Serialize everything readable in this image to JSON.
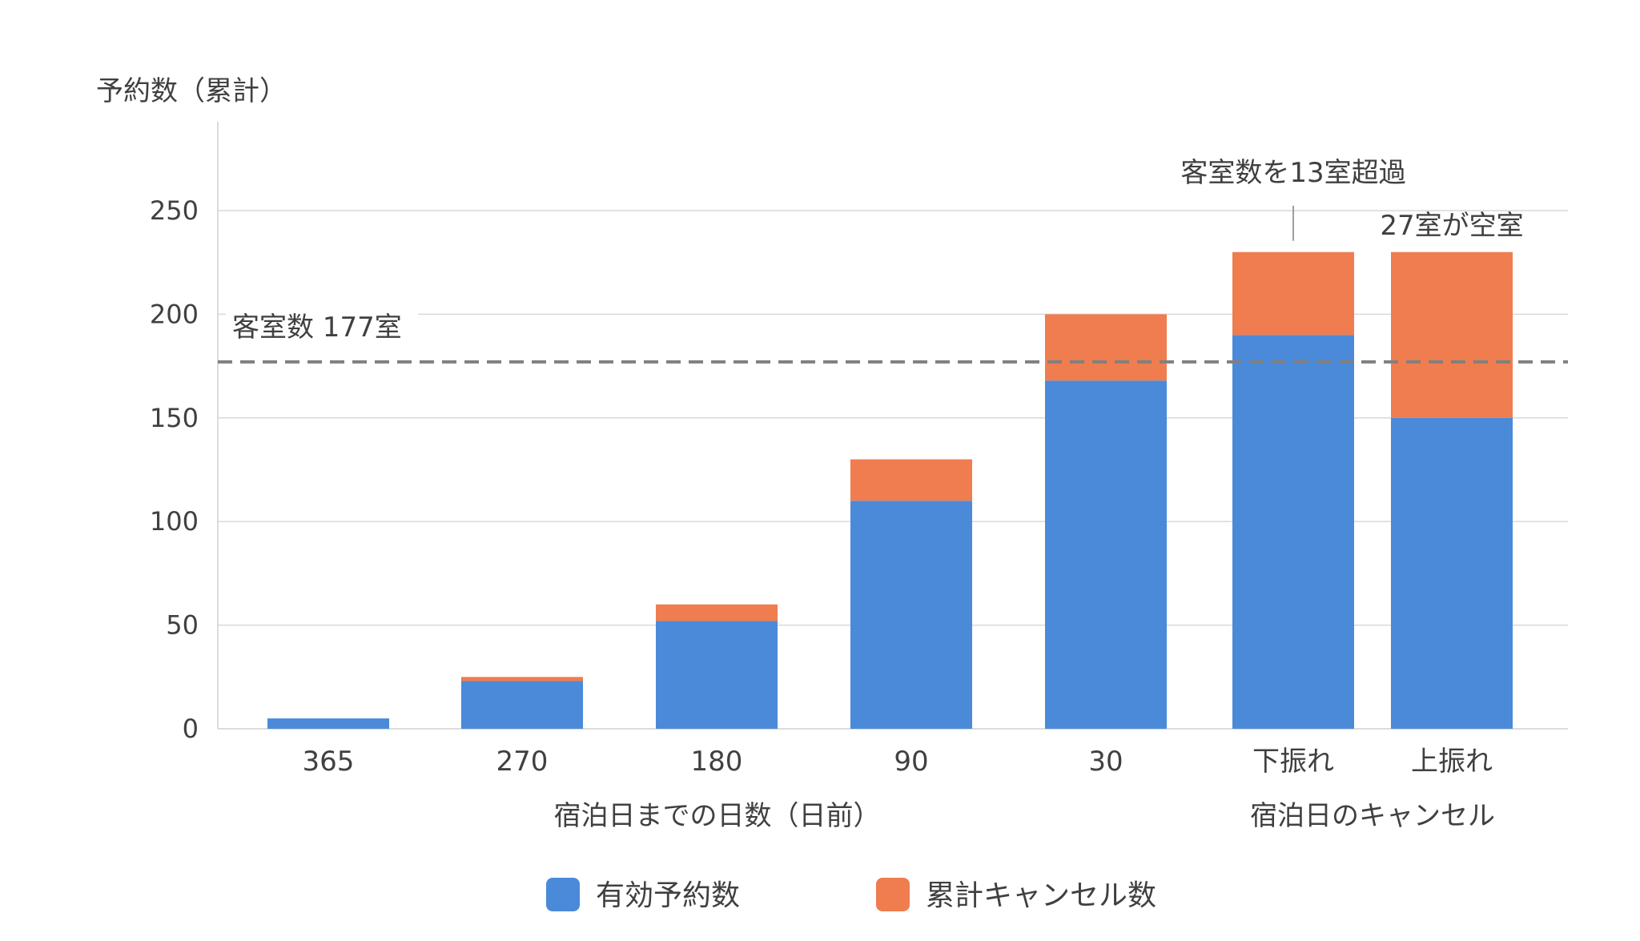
{
  "chart_data": {
    "type": "bar",
    "stacked": true,
    "ylabel": "予約数（累計）",
    "ylim": [
      0,
      290
    ],
    "yticks": [
      0,
      50,
      100,
      150,
      200,
      250
    ],
    "grid": true,
    "categories": [
      "365",
      "270",
      "180",
      "90",
      "30",
      "下振れ",
      "上振れ"
    ],
    "category_groups": [
      {
        "label": "宿泊日までの日数（日前）",
        "categories": [
          "365",
          "270",
          "180",
          "90",
          "30"
        ]
      },
      {
        "label": "宿泊日のキャンセル",
        "categories": [
          "下振れ",
          "上振れ"
        ]
      }
    ],
    "series": [
      {
        "name": "有効予約数",
        "color": "#4a8ad9",
        "values": [
          5,
          23,
          52,
          110,
          168,
          190,
          150
        ]
      },
      {
        "name": "累計キャンセル数",
        "color": "#ef7d4f",
        "values": [
          0,
          2,
          8,
          20,
          32,
          40,
          80
        ]
      }
    ],
    "reference_line": {
      "value": 177,
      "label": "客室数 177室",
      "color": "#808080",
      "style": "dashed"
    },
    "annotations": [
      {
        "category": "下振れ",
        "text": "客室数を13室超過"
      },
      {
        "category": "上振れ",
        "text": "27室が空室"
      }
    ],
    "legend": {
      "position": "bottom"
    }
  }
}
